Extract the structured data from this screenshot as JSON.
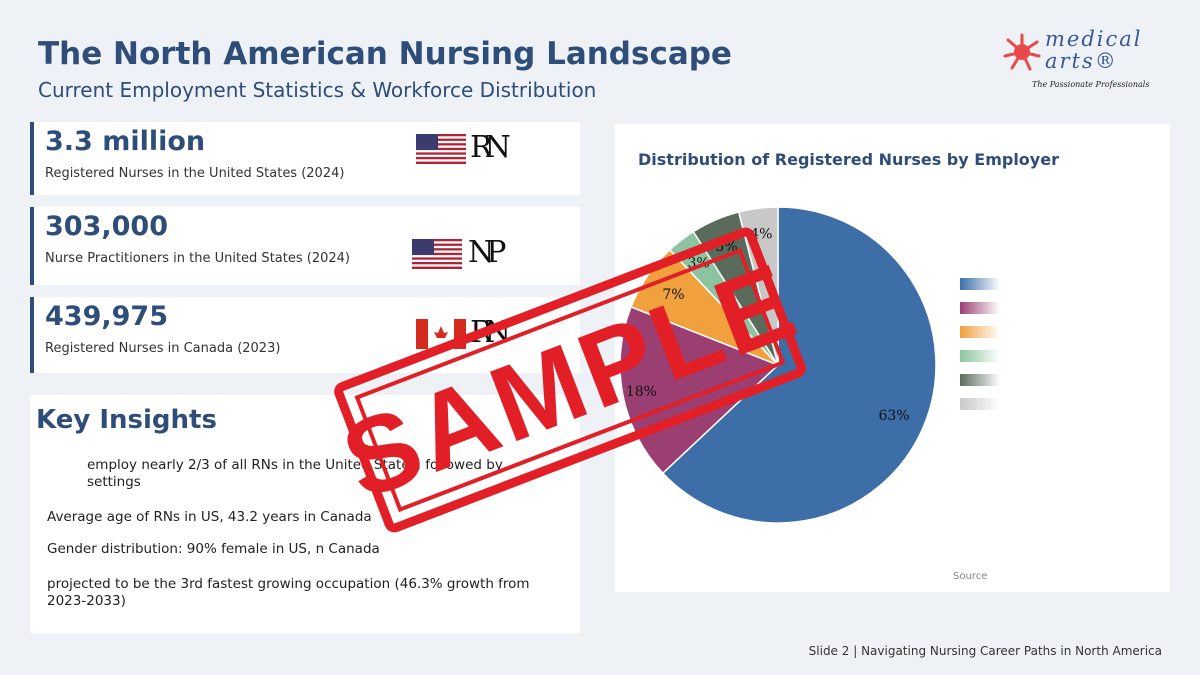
{
  "header": {
    "title": "The North American Nursing Landscape",
    "subtitle": "Current Employment Statistics & Workforce Distribution"
  },
  "logo": {
    "brand_line1": "medical",
    "brand_line2": "arts®",
    "tagline": "The Passionate Professionals"
  },
  "stats": [
    {
      "value": "3.3 million",
      "label": "Registered Nurses in the United States (2024)",
      "flag": "us-flag-icon",
      "monogram": "RN"
    },
    {
      "value": "303,000",
      "label": "Nurse Practitioners in the United States (2024)",
      "flag": "us-flag-icon",
      "monogram": "NP"
    },
    {
      "value": "439,975",
      "label": "Registered Nurses in Canada (2023)",
      "flag": "canada-flag-icon",
      "monogram": "RN"
    }
  ],
  "insights": {
    "title": "Key Insights",
    "items": [
      "employ nearly 2/3 of all RNs in the United States, followed by settings",
      "Average age of RNs in US, 43.2 years in Canada",
      "Gender distribution: 90% female in US, n Canada",
      "projected to be the 3rd fastest growing occupation (46.3% growth from 2023-2033)"
    ]
  },
  "chart_data": {
    "type": "pie",
    "title": "Distribution of Registered Nurses by Employer",
    "values": [
      63,
      18,
      7,
      3,
      5,
      4
    ],
    "labels": [
      "63%",
      "18%",
      "7%",
      "3%",
      "5%",
      "4%"
    ],
    "colors": [
      "#3d6ea8",
      "#9b3f72",
      "#f0a03c",
      "#8cc4a0",
      "#5a6b5c",
      "#c8c8c8"
    ],
    "source": "Source"
  },
  "watermark": "SAMPLE",
  "footer": "Slide 2 | Navigating Nursing Career Paths in North America"
}
